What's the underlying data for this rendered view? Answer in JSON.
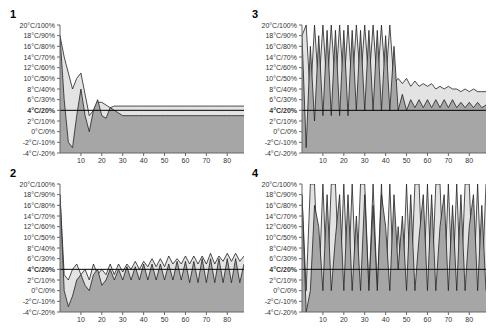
{
  "chart_data": [
    {
      "type": "area",
      "title": "1",
      "x": [
        0,
        2,
        4,
        6,
        8,
        10,
        12,
        14,
        16,
        18,
        20,
        22,
        24,
        26,
        28,
        30,
        32,
        34,
        36,
        38,
        40,
        42,
        44,
        46,
        48,
        50,
        52,
        54,
        56,
        58,
        60,
        62,
        64,
        66,
        68,
        70,
        72,
        74,
        76,
        78,
        80,
        82,
        84,
        86,
        88
      ],
      "xlim": [
        0,
        88
      ],
      "xticks": [
        10,
        20,
        30,
        40,
        50,
        60,
        70,
        80
      ],
      "ylim": [
        -4,
        20
      ],
      "yticks": [
        {
          "value": -4,
          "label": "-4°C/-20%"
        },
        {
          "value": -2,
          "label": "-2°C/-10%"
        },
        {
          "value": 0,
          "label": "0°C/0%"
        },
        {
          "value": 2,
          "label": "2°C/10%"
        },
        {
          "value": 4,
          "label": "4°C/20%"
        },
        {
          "value": 6,
          "label": "6°C/30%"
        },
        {
          "value": 8,
          "label": "8°C/40%"
        },
        {
          "value": 10,
          "label": "10°C/50%"
        },
        {
          "value": 12,
          "label": "12°C/60%"
        },
        {
          "value": 14,
          "label": "14°C/70%"
        },
        {
          "value": 16,
          "label": "16°C/80%"
        },
        {
          "value": 18,
          "label": "18°C/90%"
        },
        {
          "value": 20,
          "label": "20°C/100%"
        }
      ],
      "reference_y": 4,
      "grid": false,
      "series": [
        {
          "color": "#e3e3e3",
          "values": [
            18,
            14,
            11,
            8,
            10,
            11,
            7,
            3,
            4,
            5.5,
            5.5,
            5,
            4.5,
            4.8,
            4.8,
            4.8,
            4.8,
            4.8,
            4.8,
            4.8,
            4.8,
            4.8,
            4.8,
            4.8,
            4.8,
            4.8,
            4.8,
            4.8,
            4.8,
            4.8,
            4.8,
            4.8,
            4.8,
            4.8,
            4.8,
            4.8,
            4.8,
            4.8,
            4.8,
            4.8,
            4.8,
            4.8,
            4.8,
            4.8,
            4.8
          ]
        },
        {
          "color": "#a6a6a6",
          "values": [
            18,
            6,
            -2,
            -3,
            3,
            8,
            3,
            0,
            4,
            6,
            3,
            2.5,
            4.5,
            4,
            3.5,
            3,
            3,
            3,
            3,
            3,
            3,
            3,
            3,
            3,
            3,
            3,
            3,
            3,
            3,
            3,
            3,
            3,
            3,
            3,
            3,
            3,
            3,
            3,
            3,
            3,
            3,
            3,
            3,
            3,
            3
          ]
        }
      ]
    },
    {
      "type": "area",
      "title": "2",
      "x": [
        0,
        2,
        4,
        6,
        8,
        10,
        12,
        14,
        16,
        18,
        20,
        22,
        24,
        26,
        28,
        30,
        32,
        34,
        36,
        38,
        40,
        42,
        44,
        46,
        48,
        50,
        52,
        54,
        56,
        58,
        60,
        62,
        64,
        66,
        68,
        70,
        72,
        74,
        76,
        78,
        80,
        82,
        84,
        86,
        88
      ],
      "xlim": [
        0,
        88
      ],
      "xticks": [
        10,
        20,
        30,
        40,
        50,
        60,
        70,
        80
      ],
      "ylim": [
        -4,
        20
      ],
      "yticks": [
        {
          "value": -4,
          "label": "-4°C/-20%"
        },
        {
          "value": -2,
          "label": "-2°C/-10%"
        },
        {
          "value": 0,
          "label": "0°C/0%"
        },
        {
          "value": 2,
          "label": "2°C/10%"
        },
        {
          "value": 4,
          "label": "4°C/20%"
        },
        {
          "value": 6,
          "label": "6°C/30%"
        },
        {
          "value": 8,
          "label": "8°C/40%"
        },
        {
          "value": 10,
          "label": "10°C/50%"
        },
        {
          "value": 12,
          "label": "12°C/60%"
        },
        {
          "value": 14,
          "label": "14°C/70%"
        },
        {
          "value": 16,
          "label": "16°C/80%"
        },
        {
          "value": 18,
          "label": "18°C/90%"
        },
        {
          "value": 20,
          "label": "20°C/100%"
        }
      ],
      "reference_y": 4,
      "grid": false,
      "series": [
        {
          "color": "#e3e3e3",
          "values": [
            18,
            3,
            2,
            4,
            5,
            3,
            4,
            2,
            5,
            3,
            4,
            3,
            5,
            3,
            5,
            3.5,
            5,
            4,
            5.5,
            4,
            5.5,
            4.5,
            6,
            4.5,
            6,
            4.5,
            6.5,
            5,
            6,
            5,
            6.5,
            5,
            6.5,
            5,
            6.5,
            5,
            7,
            5,
            6.5,
            5.5,
            7,
            5.5,
            7,
            5.5,
            6.5
          ]
        },
        {
          "color": "#a6a6a6",
          "values": [
            18,
            0,
            -3,
            -1,
            2,
            3,
            1,
            0,
            3,
            4,
            1,
            2,
            4,
            2,
            4,
            2,
            4.5,
            2,
            4.5,
            2,
            5,
            2,
            5,
            2,
            5,
            2,
            5,
            2,
            5.5,
            2,
            5.5,
            1.5,
            5.5,
            1.5,
            6,
            1.5,
            6,
            1.5,
            6,
            1.5,
            6,
            1.5,
            6,
            1.5,
            5
          ]
        }
      ]
    },
    {
      "type": "area",
      "title": "3",
      "x": [
        0,
        2,
        4,
        6,
        8,
        10,
        12,
        14,
        16,
        18,
        20,
        22,
        24,
        26,
        28,
        30,
        32,
        34,
        36,
        38,
        40,
        42,
        44,
        46,
        48,
        50,
        52,
        54,
        56,
        58,
        60,
        62,
        64,
        66,
        68,
        70,
        72,
        74,
        76,
        78,
        80,
        82,
        84,
        86,
        88
      ],
      "xlim": [
        0,
        88
      ],
      "xticks": [
        10,
        20,
        30,
        40,
        50,
        60,
        70,
        80
      ],
      "ylim": [
        -4,
        20
      ],
      "yticks": [
        {
          "value": -4,
          "label": "-4°C/-20%"
        },
        {
          "value": -2,
          "label": "-2°C/-10%"
        },
        {
          "value": 0,
          "label": "0°C/0%"
        },
        {
          "value": 2,
          "label": "2°C/10%"
        },
        {
          "value": 4,
          "label": "4°C/20%"
        },
        {
          "value": 6,
          "label": "6°C/30%"
        },
        {
          "value": 8,
          "label": "8°C/40%"
        },
        {
          "value": 10,
          "label": "10°C/50%"
        },
        {
          "value": 12,
          "label": "12°C/60%"
        },
        {
          "value": 14,
          "label": "14°C/70%"
        },
        {
          "value": 16,
          "label": "16°C/80%"
        },
        {
          "value": 18,
          "label": "18°C/90%"
        },
        {
          "value": 20,
          "label": "20°C/100%"
        }
      ],
      "reference_y": 4,
      "grid": false,
      "series": [
        {
          "color": "#e3e3e3",
          "values": [
            18,
            20,
            6,
            20,
            8,
            20,
            8,
            20,
            8,
            20,
            8,
            20,
            8,
            20,
            9,
            20,
            9,
            20,
            9,
            20,
            9,
            20,
            9,
            10,
            9,
            10,
            8.5,
            9.5,
            8.5,
            9,
            8.5,
            9,
            8,
            8.5,
            8,
            8.5,
            8,
            8,
            7.5,
            8,
            7.5,
            8,
            7.5,
            7.5,
            7.5
          ]
        },
        {
          "color": "#a6a6a6",
          "values": [
            18,
            -3,
            16,
            2,
            18,
            3,
            19,
            3,
            19,
            3,
            19,
            3,
            19,
            4,
            19,
            4,
            19,
            4,
            19,
            4,
            18,
            4,
            16,
            4,
            7,
            4,
            6,
            4.5,
            6,
            4.5,
            6,
            4.5,
            6,
            4.5,
            6,
            4.5,
            6,
            4.5,
            5.5,
            4.5,
            5.5,
            4.5,
            5.5,
            4.5,
            5
          ]
        }
      ]
    },
    {
      "type": "area",
      "title": "4",
      "x": [
        0,
        2,
        4,
        6,
        8,
        10,
        12,
        14,
        16,
        18,
        20,
        22,
        24,
        26,
        28,
        30,
        32,
        34,
        36,
        38,
        40,
        42,
        44,
        46,
        48,
        50,
        52,
        54,
        56,
        58,
        60,
        62,
        64,
        66,
        68,
        70,
        72,
        74,
        76,
        78,
        80,
        82,
        84,
        86,
        88
      ],
      "xlim": [
        0,
        88
      ],
      "xticks": [
        10,
        20,
        30,
        40,
        50,
        60,
        70,
        80
      ],
      "ylim": [
        -4,
        20
      ],
      "yticks": [
        {
          "value": -4,
          "label": "-4°C/-20%"
        },
        {
          "value": -2,
          "label": "-2°C/-10%"
        },
        {
          "value": 0,
          "label": "0°C/0%"
        },
        {
          "value": 2,
          "label": "2°C/10%"
        },
        {
          "value": 4,
          "label": "4°C/20%"
        },
        {
          "value": 6,
          "label": "6°C/30%"
        },
        {
          "value": 8,
          "label": "8°C/40%"
        },
        {
          "value": 10,
          "label": "10°C/50%"
        },
        {
          "value": 12,
          "label": "12°C/60%"
        },
        {
          "value": 14,
          "label": "14°C/70%"
        },
        {
          "value": 16,
          "label": "16°C/80%"
        },
        {
          "value": 18,
          "label": "18°C/90%"
        },
        {
          "value": 20,
          "label": "20°C/100%"
        }
      ],
      "reference_y": 4,
      "grid": false,
      "series": [
        {
          "color": "#e3e3e3",
          "values": [
            18,
            0,
            20,
            20,
            0,
            20,
            0,
            20,
            20,
            0,
            20,
            0,
            20,
            0,
            20,
            20,
            0,
            20,
            0,
            20,
            0,
            20,
            0,
            12,
            0,
            20,
            0,
            20,
            20,
            0,
            20,
            0,
            20,
            20,
            0,
            20,
            0,
            20,
            0,
            20,
            20,
            0,
            20,
            0,
            20
          ]
        },
        {
          "color": "#a6a6a6",
          "values": [
            18,
            -4,
            0,
            16,
            12,
            0,
            18,
            0,
            10,
            18,
            0,
            18,
            0,
            14,
            0,
            18,
            0,
            16,
            0,
            18,
            12,
            0,
            18,
            4,
            14,
            0,
            18,
            0,
            10,
            18,
            0,
            18,
            0,
            12,
            18,
            0,
            16,
            0,
            18,
            0,
            12,
            18,
            0,
            16,
            0
          ]
        }
      ]
    }
  ]
}
